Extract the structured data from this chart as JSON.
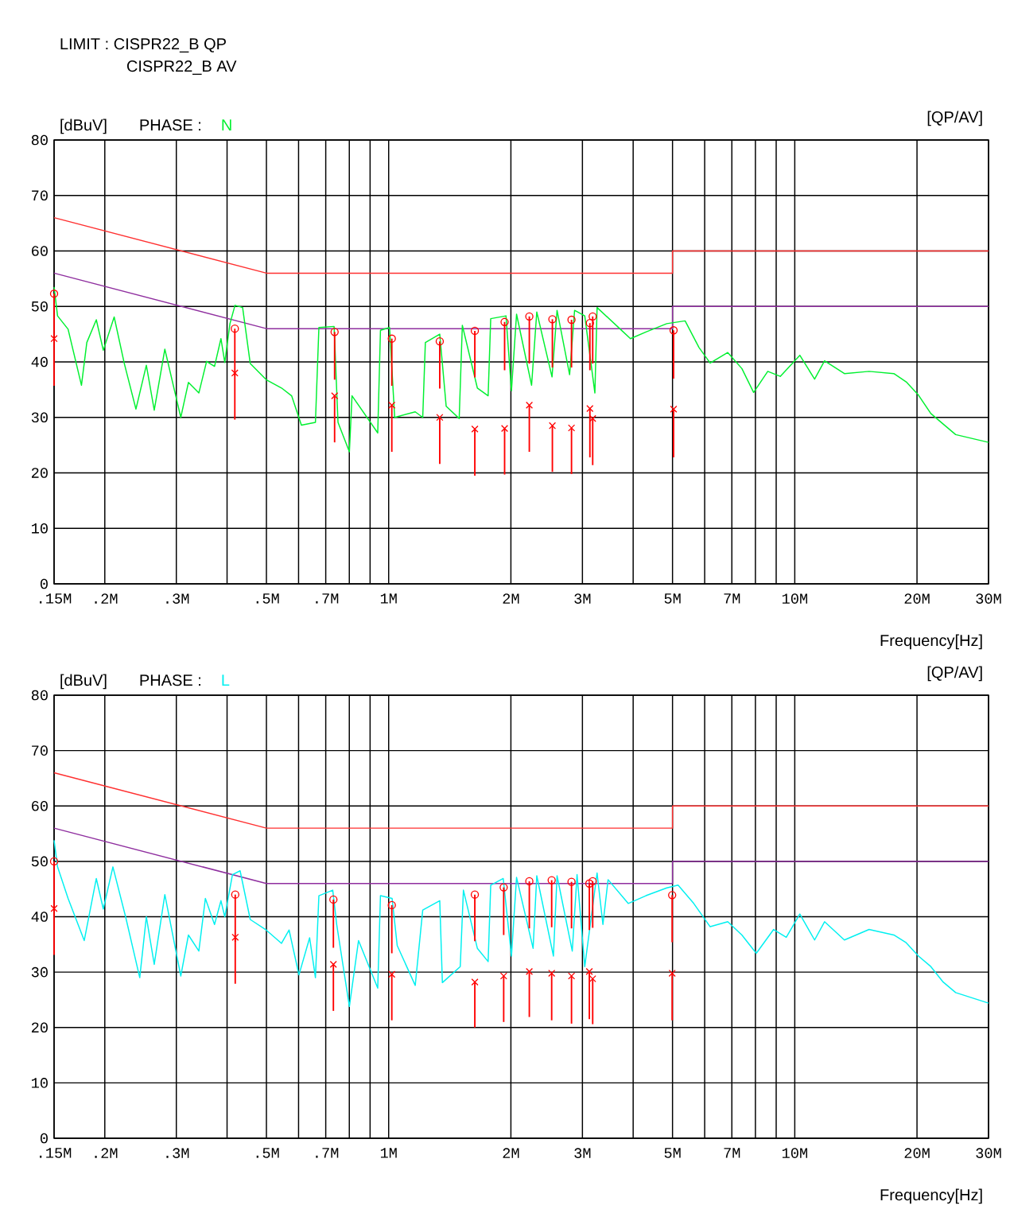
{
  "chart_data": [
    {
      "type": "line",
      "title": "PHASE :",
      "xlabel": "Frequency[Hz]",
      "ylabel": "[dBuV]",
      "annotations": [
        "LIMIT : CISPR22_B QP",
        "CISPR22_B AV",
        "[QP/AV]"
      ],
      "xlim": [
        0.15,
        30
      ],
      "ylim": [
        0,
        80
      ],
      "log": "x",
      "grid": true,
      "xticks": [
        {
          "value": 0.15,
          "label": ".15M"
        },
        {
          "value": 0.2,
          "label": ".2M"
        },
        {
          "value": 0.3,
          "label": ".3M"
        },
        {
          "value": 0.4,
          "label": null
        },
        {
          "value": 0.5,
          "label": ".5M"
        },
        {
          "value": 0.6,
          "label": null
        },
        {
          "value": 0.7,
          "label": ".7M"
        },
        {
          "value": 0.8,
          "label": null
        },
        {
          "value": 0.9,
          "label": null
        },
        {
          "value": 1,
          "label": "1M"
        },
        {
          "value": 2,
          "label": "2M"
        },
        {
          "value": 3,
          "label": "3M"
        },
        {
          "value": 4,
          "label": null
        },
        {
          "value": 5,
          "label": "5M"
        },
        {
          "value": 6,
          "label": null
        },
        {
          "value": 7,
          "label": "7M"
        },
        {
          "value": 8,
          "label": null
        },
        {
          "value": 9,
          "label": null
        },
        {
          "value": 10,
          "label": "10M"
        },
        {
          "value": 20,
          "label": "20M"
        },
        {
          "value": 30,
          "label": "30M"
        }
      ],
      "yticks": [
        0,
        10,
        20,
        30,
        40,
        50,
        60,
        70,
        80
      ],
      "series": [
        {
          "color": "#ff3030",
          "x": [
            0.15,
            0.5,
            5,
            5,
            30
          ],
          "values": [
            66,
            56,
            56,
            60,
            60
          ]
        },
        {
          "color": "#8f2f9f",
          "x": [
            0.15,
            0.5,
            5,
            5,
            30
          ],
          "values": [
            56,
            46,
            46,
            50,
            50
          ]
        },
        {
          "name": "N",
          "color": "#00f030",
          "x": [
            0.15,
            0.153,
            0.1624,
            0.1752,
            0.1806,
            0.1906,
            0.1983,
            0.2109,
            0.2234,
            0.2386,
            0.2531,
            0.2647,
            0.2811,
            0.3077,
            0.3213,
            0.3409,
            0.3562,
            0.3726,
            0.3864,
            0.3949,
            0.4066,
            0.4184,
            0.4369,
            0.4562,
            0.4993,
            0.5447,
            0.5768,
            0.6097,
            0.6602,
            0.6733,
            0.7339,
            0.7504,
            0.8003,
            0.8124,
            0.9399,
            0.9545,
            1.0052,
            1.0346,
            1.1626,
            1.2131,
            1.2313,
            1.336,
            1.3856,
            1.4917,
            1.5186,
            1.6534,
            1.7578,
            1.7838,
            1.9453,
            2.0059,
            2.065,
            2.2488,
            2.316,
            2.525,
            2.598,
            2.79,
            2.87,
            3.04,
            3.22,
            3.26,
            3.72,
            3.94,
            4.3,
            4.84,
            5.37,
            5.81,
            6.19,
            6.84,
            7.41,
            7.92,
            8.58,
            9.21,
            10.29,
            11.19,
            11.84,
            13.25,
            15.24,
            17.54,
            18.81,
            20.17,
            21.63,
            23.2,
            24.9,
            30
          ],
          "values": [
            53.5,
            48.3,
            45.9,
            35.8,
            43.5,
            47.6,
            42.1,
            48.1,
            39.7,
            31.5,
            39.4,
            31.3,
            42.3,
            30.0,
            36.3,
            34.4,
            40.1,
            39.2,
            44.2,
            39.9,
            46.9,
            50.2,
            49.8,
            39.7,
            36.8,
            35.3,
            33.9,
            28.6,
            29.1,
            46.2,
            46.4,
            29.1,
            23.8,
            33.9,
            27.2,
            45.7,
            46.2,
            30.0,
            31.0,
            30.0,
            43.5,
            45.0,
            32.0,
            29.8,
            46.6,
            35.3,
            33.9,
            47.8,
            48.3,
            34.8,
            48.6,
            35.8,
            49.0,
            37.3,
            49.3,
            37.7,
            49.3,
            48.3,
            34.4,
            49.8,
            45.9,
            44.2,
            45.4,
            46.9,
            47.4,
            42.6,
            39.8,
            41.7,
            38.8,
            34.5,
            38.3,
            37.4,
            41.2,
            36.9,
            40.2,
            37.9,
            38.3,
            37.9,
            36.4,
            34.0,
            30.7,
            28.8,
            26.9,
            25.5
          ]
        },
        {
          "type": "scatter",
          "marker": "circle",
          "color": "#ff0000",
          "x": [
            0.15,
            0.418,
            0.736,
            1.018,
            1.336,
            1.63,
            1.93,
            2.22,
            2.53,
            2.82,
            3.13,
            3.18,
            5.03
          ],
          "values": [
            52.3,
            46.0,
            45.4,
            44.2,
            43.7,
            45.6,
            47.2,
            48.2,
            47.7,
            47.6,
            47.0,
            48.2,
            45.7
          ],
          "errors": [
            [
              43.8,
              52.3
            ],
            [
              37.5,
              46.0
            ],
            [
              36.8,
              45.4
            ],
            [
              35.7,
              44.2
            ],
            [
              35.2,
              43.7
            ],
            [
              37.2,
              45.6
            ],
            [
              38.5,
              47.2
            ],
            [
              39.7,
              48.2
            ],
            [
              39.0,
              47.7
            ],
            [
              39.0,
              47.6
            ],
            [
              38.5,
              47.0
            ],
            [
              39.7,
              48.2
            ],
            [
              37.0,
              45.7
            ]
          ]
        },
        {
          "type": "scatter",
          "marker": "cross",
          "color": "#ff0000",
          "x": [
            0.15,
            0.418,
            0.736,
            1.018,
            1.336,
            1.63,
            1.93,
            2.22,
            2.53,
            2.82,
            3.13,
            3.18,
            5.03
          ],
          "values": [
            44.2,
            38.0,
            33.9,
            32.2,
            30.0,
            27.9,
            28.0,
            32.2,
            28.5,
            28.1,
            31.6,
            29.8,
            31.5
          ],
          "errors": [
            [
              35.7,
              44.2
            ],
            [
              29.6,
              38.0
            ],
            [
              25.5,
              33.9
            ],
            [
              23.8,
              32.2
            ],
            [
              21.6,
              30.0
            ],
            [
              19.5,
              27.9
            ],
            [
              19.7,
              28.0
            ],
            [
              23.8,
              32.2
            ],
            [
              20.2,
              28.5
            ],
            [
              19.8,
              28.1
            ],
            [
              22.8,
              31.6
            ],
            [
              21.4,
              29.8
            ],
            [
              22.8,
              31.5
            ]
          ]
        }
      ]
    },
    {
      "type": "line",
      "title": "PHASE :",
      "xlabel": "Frequency[Hz]",
      "ylabel": "[dBuV]",
      "annotations": [
        "[QP/AV]"
      ],
      "xlim": [
        0.15,
        30
      ],
      "ylim": [
        0,
        80
      ],
      "log": "x",
      "grid": true,
      "xticks": [
        {
          "value": 0.15,
          "label": ".15M"
        },
        {
          "value": 0.2,
          "label": ".2M"
        },
        {
          "value": 0.3,
          "label": ".3M"
        },
        {
          "value": 0.4,
          "label": null
        },
        {
          "value": 0.5,
          "label": ".5M"
        },
        {
          "value": 0.6,
          "label": null
        },
        {
          "value": 0.7,
          "label": ".7M"
        },
        {
          "value": 0.8,
          "label": null
        },
        {
          "value": 0.9,
          "label": null
        },
        {
          "value": 1,
          "label": "1M"
        },
        {
          "value": 2,
          "label": "2M"
        },
        {
          "value": 3,
          "label": "3M"
        },
        {
          "value": 4,
          "label": null
        },
        {
          "value": 5,
          "label": "5M"
        },
        {
          "value": 6,
          "label": null
        },
        {
          "value": 7,
          "label": "7M"
        },
        {
          "value": 8,
          "label": null
        },
        {
          "value": 9,
          "label": null
        },
        {
          "value": 10,
          "label": "10M"
        },
        {
          "value": 20,
          "label": "20M"
        },
        {
          "value": 30,
          "label": "30M"
        }
      ],
      "yticks": [
        0,
        10,
        20,
        30,
        40,
        50,
        60,
        70,
        80
      ],
      "series": [
        {
          "color": "#ff3030",
          "x": [
            0.15,
            0.5,
            5,
            5,
            30
          ],
          "values": [
            66,
            56,
            56,
            60,
            60
          ]
        },
        {
          "color": "#8f2f9f",
          "x": [
            0.15,
            0.5,
            5,
            5,
            30
          ],
          "values": [
            56,
            46,
            46,
            50,
            50
          ]
        },
        {
          "name": "L",
          "color": "#00f0f0",
          "x": [
            0.15,
            0.153,
            0.1624,
            0.178,
            0.1906,
            0.1983,
            0.2094,
            0.225,
            0.2438,
            0.2531,
            0.2647,
            0.2811,
            0.3077,
            0.3213,
            0.3409,
            0.3537,
            0.3726,
            0.3864,
            0.3949,
            0.4124,
            0.4307,
            0.4562,
            0.4993,
            0.5447,
            0.5686,
            0.6013,
            0.6388,
            0.6602,
            0.6733,
            0.7283,
            0.7448,
            0.8003,
            0.843,
            0.9399,
            0.9545,
            1.0198,
            1.0496,
            1.1626,
            1.2131,
            1.336,
            1.356,
            1.5006,
            1.5278,
            1.6534,
            1.7578,
            1.7838,
            1.915,
            2.0059,
            2.065,
            2.268,
            2.316,
            2.545,
            2.598,
            2.832,
            2.91,
            3.04,
            3.26,
            3.37,
            3.47,
            3.89,
            4.3,
            4.84,
            5.16,
            5.64,
            6.19,
            6.84,
            7.41,
            8.04,
            8.87,
            9.53,
            10.29,
            11.19,
            11.84,
            13.25,
            15.24,
            17.54,
            18.81,
            20.17,
            21.63,
            23.2,
            24.9,
            30
          ],
          "values": [
            53.8,
            49.0,
            43.3,
            35.7,
            46.9,
            41.4,
            49.0,
            40.0,
            29.0,
            40.0,
            31.4,
            44.0,
            29.3,
            36.7,
            33.8,
            43.3,
            38.6,
            42.9,
            40.0,
            47.6,
            48.3,
            39.5,
            37.6,
            35.2,
            37.6,
            29.5,
            36.2,
            29.0,
            43.8,
            44.8,
            38.6,
            23.8,
            35.7,
            27.1,
            43.8,
            43.3,
            34.8,
            27.6,
            41.2,
            42.9,
            28.1,
            31.0,
            44.8,
            34.3,
            31.9,
            45.7,
            46.9,
            32.9,
            47.1,
            34.3,
            47.4,
            32.9,
            47.4,
            33.8,
            47.6,
            31.0,
            47.9,
            38.6,
            46.7,
            42.4,
            43.8,
            45.2,
            45.7,
            42.4,
            38.2,
            39.1,
            36.7,
            33.4,
            37.7,
            36.3,
            40.5,
            35.8,
            39.1,
            35.8,
            37.7,
            36.7,
            35.3,
            32.9,
            31.0,
            28.2,
            26.3,
            24.4
          ]
        },
        {
          "type": "scatter",
          "marker": "circle",
          "color": "#ff0000",
          "x": [
            0.15,
            0.419,
            0.731,
            1.018,
            1.63,
            1.92,
            2.22,
            2.52,
            2.82,
            3.12,
            3.18,
            4.99
          ],
          "values": [
            50.0,
            44.0,
            43.1,
            42.1,
            44.0,
            45.3,
            46.4,
            46.6,
            46.3,
            46.0,
            46.4,
            43.9
          ],
          "errors": [
            [
              41.5,
              50.0
            ],
            [
              35.5,
              44.0
            ],
            [
              34.4,
              43.1
            ],
            [
              33.4,
              42.1
            ],
            [
              35.6,
              44.0
            ],
            [
              36.7,
              45.3
            ],
            [
              37.9,
              46.4
            ],
            [
              38.1,
              46.6
            ],
            [
              37.9,
              46.3
            ],
            [
              37.6,
              46.0
            ],
            [
              38.0,
              46.4
            ],
            [
              35.4,
              43.9
            ]
          ]
        },
        {
          "type": "scatter",
          "marker": "cross",
          "color": "#ff0000",
          "x": [
            0.15,
            0.419,
            0.731,
            1.018,
            1.63,
            1.92,
            2.22,
            2.52,
            2.82,
            3.12,
            3.18,
            4.99
          ],
          "values": [
            41.5,
            36.3,
            31.4,
            29.6,
            28.2,
            29.3,
            30.1,
            29.8,
            29.3,
            30.1,
            28.8,
            29.8
          ],
          "errors": [
            [
              33.1,
              41.5
            ],
            [
              27.9,
              36.3
            ],
            [
              23.0,
              31.4
            ],
            [
              21.3,
              29.6
            ],
            [
              20.0,
              28.2
            ],
            [
              21.0,
              29.3
            ],
            [
              21.9,
              30.1
            ],
            [
              21.3,
              29.8
            ],
            [
              20.7,
              29.3
            ],
            [
              21.5,
              30.1
            ],
            [
              20.6,
              28.8
            ],
            [
              21.3,
              29.8
            ]
          ]
        }
      ]
    }
  ]
}
